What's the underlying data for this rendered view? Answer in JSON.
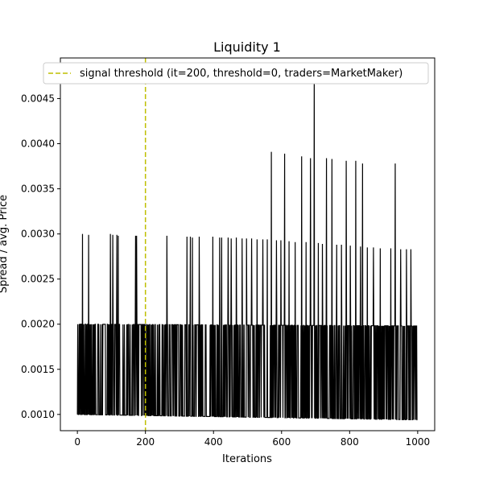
{
  "chart_data": {
    "type": "line",
    "title": "Liquidity 1",
    "xlabel": "Iterations",
    "ylabel": "Spread / avg. Price",
    "xlim": [
      -50,
      1050
    ],
    "ylim": [
      0.00082,
      0.00495
    ],
    "x_ticks": [
      0,
      200,
      400,
      600,
      800,
      1000
    ],
    "x_tick_labels": [
      "0",
      "200",
      "400",
      "600",
      "800",
      "1000"
    ],
    "y_ticks": [
      0.001,
      0.0015,
      0.002,
      0.0025,
      0.003,
      0.0035,
      0.004,
      0.0045
    ],
    "y_tick_labels": [
      "0.0010",
      "0.0015",
      "0.0020",
      "0.0025",
      "0.0030",
      "0.0035",
      "0.0040",
      "0.0045"
    ],
    "grid": false,
    "legend_position": "top",
    "series": [
      {
        "color": "#000000",
        "x_range": [
          0,
          999
        ],
        "low_level": {
          "start": 0.001,
          "end": 0.00094
        },
        "high_level": 0.002,
        "spikes": [
          {
            "x": 15,
            "y": 0.003
          },
          {
            "x": 33,
            "y": 0.00299
          },
          {
            "x": 97,
            "y": 0.003
          },
          {
            "x": 104,
            "y": 0.00299
          },
          {
            "x": 116,
            "y": 0.00299
          },
          {
            "x": 120,
            "y": 0.00298
          },
          {
            "x": 171,
            "y": 0.00298
          },
          {
            "x": 174,
            "y": 0.00298
          },
          {
            "x": 263,
            "y": 0.00298
          },
          {
            "x": 322,
            "y": 0.00297
          },
          {
            "x": 332,
            "y": 0.00297
          },
          {
            "x": 338,
            "y": 0.00296
          },
          {
            "x": 358,
            "y": 0.00297
          },
          {
            "x": 398,
            "y": 0.00297
          },
          {
            "x": 418,
            "y": 0.00296
          },
          {
            "x": 424,
            "y": 0.00296
          },
          {
            "x": 443,
            "y": 0.00296
          },
          {
            "x": 452,
            "y": 0.00295
          },
          {
            "x": 467,
            "y": 0.00296
          },
          {
            "x": 484,
            "y": 0.00295
          },
          {
            "x": 497,
            "y": 0.00295
          },
          {
            "x": 512,
            "y": 0.00295
          },
          {
            "x": 528,
            "y": 0.00294
          },
          {
            "x": 545,
            "y": 0.00294
          },
          {
            "x": 558,
            "y": 0.00294
          },
          {
            "x": 570,
            "y": 0.00391
          },
          {
            "x": 585,
            "y": 0.00293
          },
          {
            "x": 598,
            "y": 0.00293
          },
          {
            "x": 609,
            "y": 0.00389
          },
          {
            "x": 622,
            "y": 0.00292
          },
          {
            "x": 640,
            "y": 0.00291
          },
          {
            "x": 659,
            "y": 0.00386
          },
          {
            "x": 672,
            "y": 0.00291
          },
          {
            "x": 685,
            "y": 0.00384
          },
          {
            "x": 696,
            "y": 0.00478
          },
          {
            "x": 708,
            "y": 0.0029
          },
          {
            "x": 720,
            "y": 0.00289
          },
          {
            "x": 732,
            "y": 0.00384
          },
          {
            "x": 748,
            "y": 0.00383
          },
          {
            "x": 762,
            "y": 0.00288
          },
          {
            "x": 776,
            "y": 0.00288
          },
          {
            "x": 790,
            "y": 0.00381
          },
          {
            "x": 802,
            "y": 0.00287
          },
          {
            "x": 818,
            "y": 0.00381
          },
          {
            "x": 832,
            "y": 0.00286
          },
          {
            "x": 838,
            "y": 0.00378
          },
          {
            "x": 852,
            "y": 0.00285
          },
          {
            "x": 870,
            "y": 0.00285
          },
          {
            "x": 890,
            "y": 0.00284
          },
          {
            "x": 921,
            "y": 0.00284
          },
          {
            "x": 934,
            "y": 0.00378
          },
          {
            "x": 950,
            "y": 0.00283
          },
          {
            "x": 967,
            "y": 0.00283
          },
          {
            "x": 980,
            "y": 0.00283
          }
        ]
      }
    ],
    "annotations": [
      {
        "type": "vline",
        "x": 200,
        "style": "dashed",
        "color": "#bfbf00",
        "label": "signal threshold (it=200, threshold=0, traders=MarketMaker)"
      }
    ]
  }
}
